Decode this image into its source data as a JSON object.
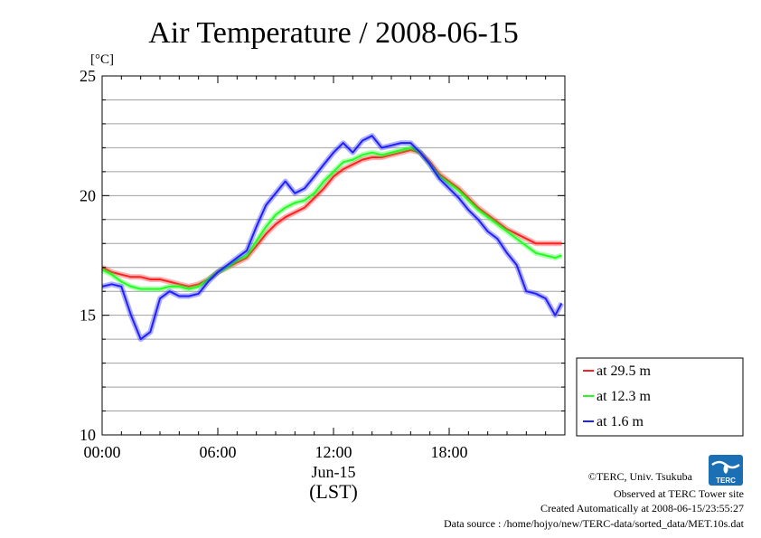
{
  "chart_data": {
    "type": "line",
    "title": "Air Temperature / 2008-06-15",
    "ylabel": "[°C]",
    "xlabel": "(LST)",
    "x_date_label": "Jun-15",
    "xlim": [
      "00:00",
      "24:00"
    ],
    "ylim": [
      10,
      25
    ],
    "yticks": [
      10,
      15,
      20,
      25
    ],
    "xticks": [
      "00:00",
      "06:00",
      "12:00",
      "18:00"
    ],
    "grid": true,
    "legend_position": "right",
    "x": [
      "00:00",
      "00:30",
      "01:00",
      "01:30",
      "02:00",
      "02:30",
      "03:00",
      "03:30",
      "04:00",
      "04:30",
      "05:00",
      "05:30",
      "06:00",
      "06:30",
      "07:00",
      "07:30",
      "08:00",
      "08:30",
      "09:00",
      "09:30",
      "10:00",
      "10:30",
      "11:00",
      "11:30",
      "12:00",
      "12:30",
      "13:00",
      "13:30",
      "14:00",
      "14:30",
      "15:00",
      "15:30",
      "16:00",
      "16:30",
      "17:00",
      "17:30",
      "18:00",
      "18:30",
      "19:00",
      "19:30",
      "20:00",
      "20:30",
      "21:00",
      "21:30",
      "22:00",
      "22:30",
      "23:00",
      "23:30",
      "23:50"
    ],
    "series": [
      {
        "name": "at 29.5 m",
        "color": "#ff2020",
        "values": [
          17.0,
          16.8,
          16.7,
          16.6,
          16.6,
          16.5,
          16.5,
          16.4,
          16.3,
          16.2,
          16.3,
          16.5,
          16.8,
          17.0,
          17.2,
          17.4,
          17.9,
          18.4,
          18.8,
          19.1,
          19.3,
          19.5,
          19.9,
          20.3,
          20.8,
          21.1,
          21.3,
          21.5,
          21.6,
          21.6,
          21.7,
          21.8,
          21.9,
          21.8,
          21.4,
          20.9,
          20.6,
          20.3,
          19.9,
          19.5,
          19.2,
          18.9,
          18.6,
          18.4,
          18.2,
          18.0,
          18.0,
          18.0,
          18.0
        ]
      },
      {
        "name": "at 12.3 m",
        "color": "#20ff20",
        "values": [
          16.9,
          16.7,
          16.4,
          16.2,
          16.1,
          16.1,
          16.1,
          16.2,
          16.2,
          16.1,
          16.2,
          16.5,
          16.8,
          17.0,
          17.3,
          17.5,
          18.1,
          18.7,
          19.2,
          19.5,
          19.7,
          19.8,
          20.1,
          20.6,
          21.0,
          21.4,
          21.5,
          21.7,
          21.8,
          21.7,
          21.8,
          21.9,
          22.0,
          21.8,
          21.3,
          20.8,
          20.5,
          20.2,
          19.8,
          19.4,
          19.1,
          18.8,
          18.5,
          18.2,
          17.9,
          17.6,
          17.5,
          17.4,
          17.5
        ]
      },
      {
        "name": "at 1.6 m",
        "color": "#2020ff",
        "values": [
          16.2,
          16.3,
          16.2,
          15.0,
          14.0,
          14.3,
          15.7,
          16.0,
          15.8,
          15.8,
          15.9,
          16.4,
          16.8,
          17.1,
          17.4,
          17.7,
          18.7,
          19.6,
          20.1,
          20.6,
          20.1,
          20.3,
          20.8,
          21.3,
          21.8,
          22.2,
          21.8,
          22.3,
          22.5,
          22.0,
          22.1,
          22.2,
          22.2,
          21.8,
          21.3,
          20.7,
          20.3,
          19.9,
          19.4,
          19.0,
          18.5,
          18.2,
          17.6,
          17.1,
          16.0,
          15.9,
          15.7,
          15.0,
          15.5
        ]
      }
    ]
  },
  "footer": {
    "copyright": "©TERC, Univ. Tsukuba",
    "observed": "Observed at TERC Tower site",
    "created": "Created Automatically at 2008-06-15/23:55:27",
    "source": "Data source : /home/hojyo/new/TERC-data/sorted_data/MET.10s.dat",
    "logo_text": "TERC",
    "logo_color": "#1a6fb5"
  }
}
